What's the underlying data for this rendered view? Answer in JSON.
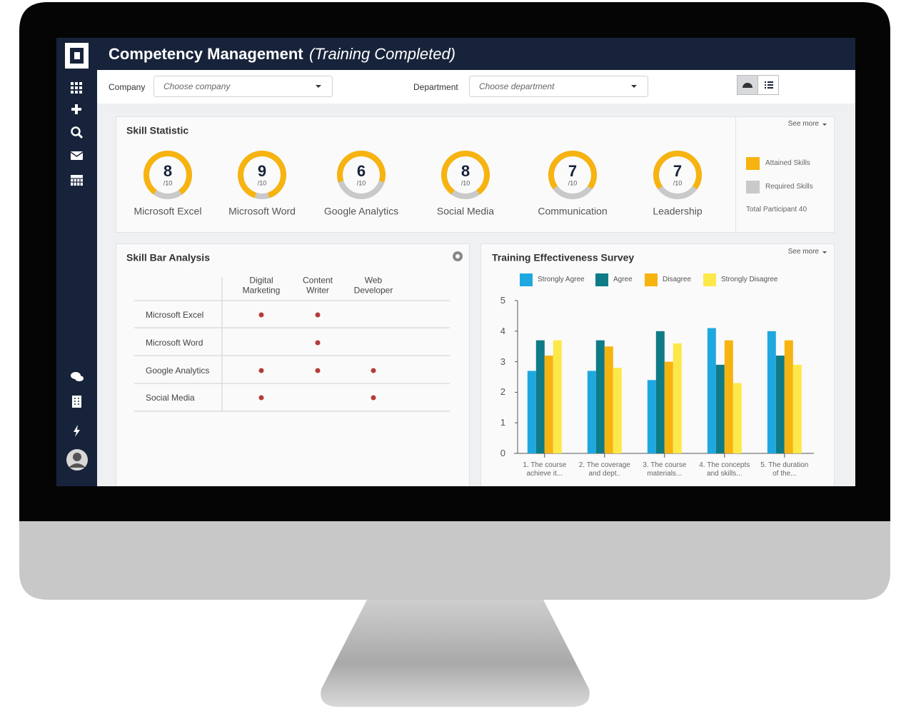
{
  "header": {
    "title": "Competency Management",
    "subtitle": "(Training Completed)"
  },
  "filters": {
    "company_label": "Company",
    "company_placeholder": "Choose company",
    "department_label": "Department",
    "department_placeholder": "Choose department"
  },
  "skill_statistic": {
    "title": "Skill Statistic",
    "see_more": "See more",
    "items": [
      {
        "label": "Microsoft Excel",
        "value": 8,
        "max": {
          "value": 10,
          "label": "/10"
        }
      },
      {
        "label": "Microsoft Word",
        "value": 9,
        "max": {
          "value": 10,
          "label": "/10"
        }
      },
      {
        "label": "Google Analytics",
        "value": 6,
        "max": {
          "value": 10,
          "label": "/10"
        }
      },
      {
        "label": "Social Media",
        "value": 8,
        "max": {
          "value": 10,
          "label": "/10"
        }
      },
      {
        "label": "Communication",
        "value": 7,
        "max": {
          "value": 10,
          "label": "/10"
        }
      },
      {
        "label": "Leadership",
        "value": 7,
        "max": {
          "value": 10,
          "label": "/10"
        }
      }
    ],
    "legend": [
      {
        "name": "Attained Skills",
        "color": "#f7b30f"
      },
      {
        "name": "Required Skills",
        "color": "#c9c9c9"
      }
    ],
    "total_participant": "Total Participant 40"
  },
  "skill_bar_analysis": {
    "title": "Skill Bar Analysis",
    "dot_color": "#b83a3a",
    "columns": [
      "Digital\nMarketing",
      "Content\nWriter",
      "Web\nDeveloper"
    ],
    "rows": [
      {
        "label": "Microsoft Excel",
        "marks": [
          true,
          true,
          false
        ]
      },
      {
        "label": "Microsoft Word",
        "marks": [
          false,
          true,
          false
        ]
      },
      {
        "label": "Google Analytics",
        "marks": [
          true,
          true,
          true
        ]
      },
      {
        "label": "Social Media",
        "marks": [
          true,
          false,
          true
        ]
      }
    ]
  },
  "chart_data": {
    "type": "bar",
    "title": "Training Effectiveness Survey",
    "see_more": "See more",
    "categories": [
      "1. The course\nachieve it...",
      "2. The coverage\nand dept..",
      "3. The course\nmaterials...",
      "4. The concepts\nand skills...",
      "5. The duration\nof the..."
    ],
    "series": [
      {
        "name": "Strongly Agree",
        "color": "#1fa8e0",
        "values": [
          2.7,
          2.7,
          2.4,
          4.1,
          4.0
        ]
      },
      {
        "name": "Agree",
        "color": "#0e7b86",
        "values": [
          3.7,
          3.7,
          4.0,
          2.9,
          3.2
        ]
      },
      {
        "name": "Disagree",
        "color": "#f7b30f",
        "values": [
          3.2,
          3.5,
          3.0,
          3.7,
          3.7
        ]
      },
      {
        "name": "Strongly Disagree",
        "color": "#fde84a",
        "values": [
          3.7,
          2.8,
          3.6,
          2.3,
          2.9
        ]
      }
    ],
    "ylim": [
      0,
      5
    ],
    "yticks": [
      0,
      1,
      2,
      3,
      4,
      5
    ],
    "grid": false
  }
}
